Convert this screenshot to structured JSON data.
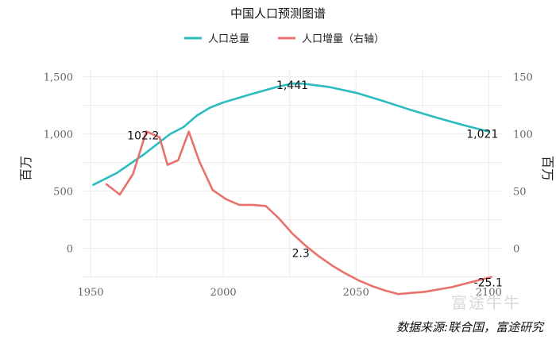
{
  "chart_data": {
    "type": "line",
    "title": "中国人口预测图谱",
    "xlabel": "",
    "ylabel_left": "百万",
    "ylabel_right": "百万",
    "xlim": [
      1947,
      2105
    ],
    "ylim_left": [
      -260,
      1560
    ],
    "ylim_right": [
      -26,
      156
    ],
    "x_ticks": [
      1950,
      2000,
      2050,
      2100
    ],
    "x_tick_labels": [
      "1950",
      "2000",
      "2050",
      "2100"
    ],
    "y_left_ticks": [
      0,
      500,
      1000,
      1500
    ],
    "y_left_tick_labels": [
      "0",
      "500",
      "1,000",
      "1,500"
    ],
    "y_right_ticks": [
      0,
      50,
      100,
      150
    ],
    "y_right_tick_labels": [
      "0",
      "50",
      "100",
      "150"
    ],
    "grid": true,
    "legend_position": "top",
    "series": [
      {
        "name": "人口总量",
        "axis": "left",
        "color": "#2bbcc0",
        "x": [
          1951,
          1960,
          1970,
          1980,
          1985,
          1990,
          1995,
          2000,
          2010,
          2020,
          2026,
          2030,
          2040,
          2050,
          2060,
          2070,
          2080,
          2090,
          2100
        ],
        "y": [
          555,
          660,
          820,
          1000,
          1060,
          1160,
          1230,
          1275,
          1345,
          1410,
          1441,
          1440,
          1410,
          1360,
          1290,
          1215,
          1145,
          1080,
          1021
        ]
      },
      {
        "name": "人口增量（右轴）",
        "axis": "right",
        "color": "#e8716b",
        "x": [
          1956,
          1961,
          1966,
          1971,
          1976,
          1979,
          1983,
          1987,
          1991,
          1996,
          2001,
          2006,
          2011,
          2016,
          2021,
          2026,
          2031,
          2036,
          2041,
          2046,
          2051,
          2056,
          2061,
          2066,
          2071,
          2076,
          2081,
          2086,
          2091,
          2096,
          2101
        ],
        "y": [
          56,
          47,
          65,
          102.2,
          97,
          73,
          77,
          102,
          76,
          51,
          43,
          38,
          38,
          37,
          26,
          13,
          2.3,
          -7,
          -15,
          -22,
          -28,
          -33,
          -37,
          -40,
          -39,
          -38,
          -36,
          -34,
          -31,
          -28,
          -25.1
        ]
      }
    ],
    "annotations": [
      {
        "text": "1,441",
        "series": 0,
        "x": 2026,
        "y": 1441
      },
      {
        "text": "1,021",
        "series": 0,
        "x": 2100,
        "y": 1021
      },
      {
        "text": "102.2",
        "series": 1,
        "x": 1971,
        "y": 102.2
      },
      {
        "text": "2.3",
        "series": 1,
        "x": 2031,
        "y": 2.3
      },
      {
        "text": "-25.1",
        "series": 1,
        "x": 2101,
        "y": -25.1
      }
    ]
  },
  "source": "数据来源:联合国，富途研究",
  "watermark": "富途牛牛"
}
